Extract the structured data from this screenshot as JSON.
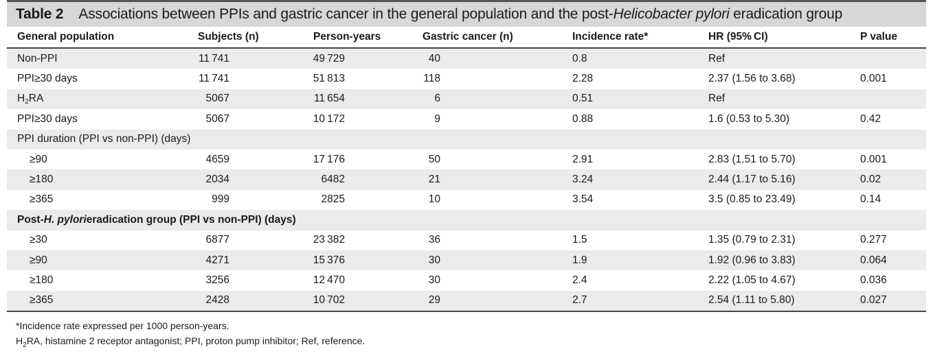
{
  "table": {
    "label": "Table 2",
    "title_pre": "Associations between PPIs and gastric cancer in the general population and the post-",
    "title_italic": "Helicobacter pylori",
    "title_post": " eradication group",
    "headers": [
      "General population",
      "Subjects (n)",
      "Person-years",
      "Gastric cancer (n)",
      "Incidence rate*",
      "HR (95% CI)",
      "P value"
    ],
    "general_rows": [
      [
        "Non-PPI",
        "11 741",
        "49 729",
        "40",
        "0.8",
        "Ref",
        ""
      ],
      [
        "PPI≥30 days",
        "11 741",
        "51 813",
        "118",
        "2.28",
        "2.37 (1.56 to 3.68)",
        "0.001"
      ],
      [
        "RA",
        "5067",
        "11 654",
        "6",
        "0.51",
        "Ref",
        ""
      ],
      [
        "PPI≥30 days",
        "5067",
        "10 172",
        "9",
        "0.88",
        "1.6 (0.53 to 5.30)",
        "0.42"
      ]
    ],
    "h2ra_prefix": "H",
    "h2ra_sub": "2",
    "duration_section": "PPI duration (PPI vs non-PPI) (days)",
    "duration_rows": [
      [
        "≥90",
        "4659",
        "17 176",
        "50",
        "2.91",
        "2.83 (1.51 to 5.70)",
        "0.001"
      ],
      [
        "≥180",
        "2034",
        "6482",
        "21",
        "3.24",
        "2.44 (1.17 to 5.16)",
        "0.02"
      ],
      [
        "≥365",
        "999",
        "2825",
        "10",
        "3.54",
        "3.5 (0.85 to 23.49)",
        "0.14"
      ]
    ],
    "erad_section_pre": "Post-",
    "erad_section_italic": "H. pylori",
    "erad_section_post": " eradication group (PPI vs non-PPI) (days)",
    "erad_rows": [
      [
        "≥30",
        "6877",
        "23 382",
        "36",
        "1.5",
        "1.35 (0.79 to 2.31)",
        "0.277"
      ],
      [
        "≥90",
        "4271",
        "15 376",
        "30",
        "1.9",
        "1.92 (0.96 to 3.83)",
        "0.064"
      ],
      [
        "≥180",
        "3256",
        "12 470",
        "30",
        "2.4",
        "2.22 (1.05 to 4.67)",
        "0.036"
      ],
      [
        "≥365",
        "2428",
        "10 702",
        "29",
        "2.7",
        "2.54 (1.11 to 5.80)",
        "0.027"
      ]
    ]
  },
  "footnotes": {
    "note1": "*Incidence rate expressed per 1000 person-years.",
    "note2_prefix": "H",
    "note2_sub": "2",
    "note2_rest": "RA, histamine 2 receptor antagonist; PPI, proton pump inhibitor; Ref, reference."
  }
}
